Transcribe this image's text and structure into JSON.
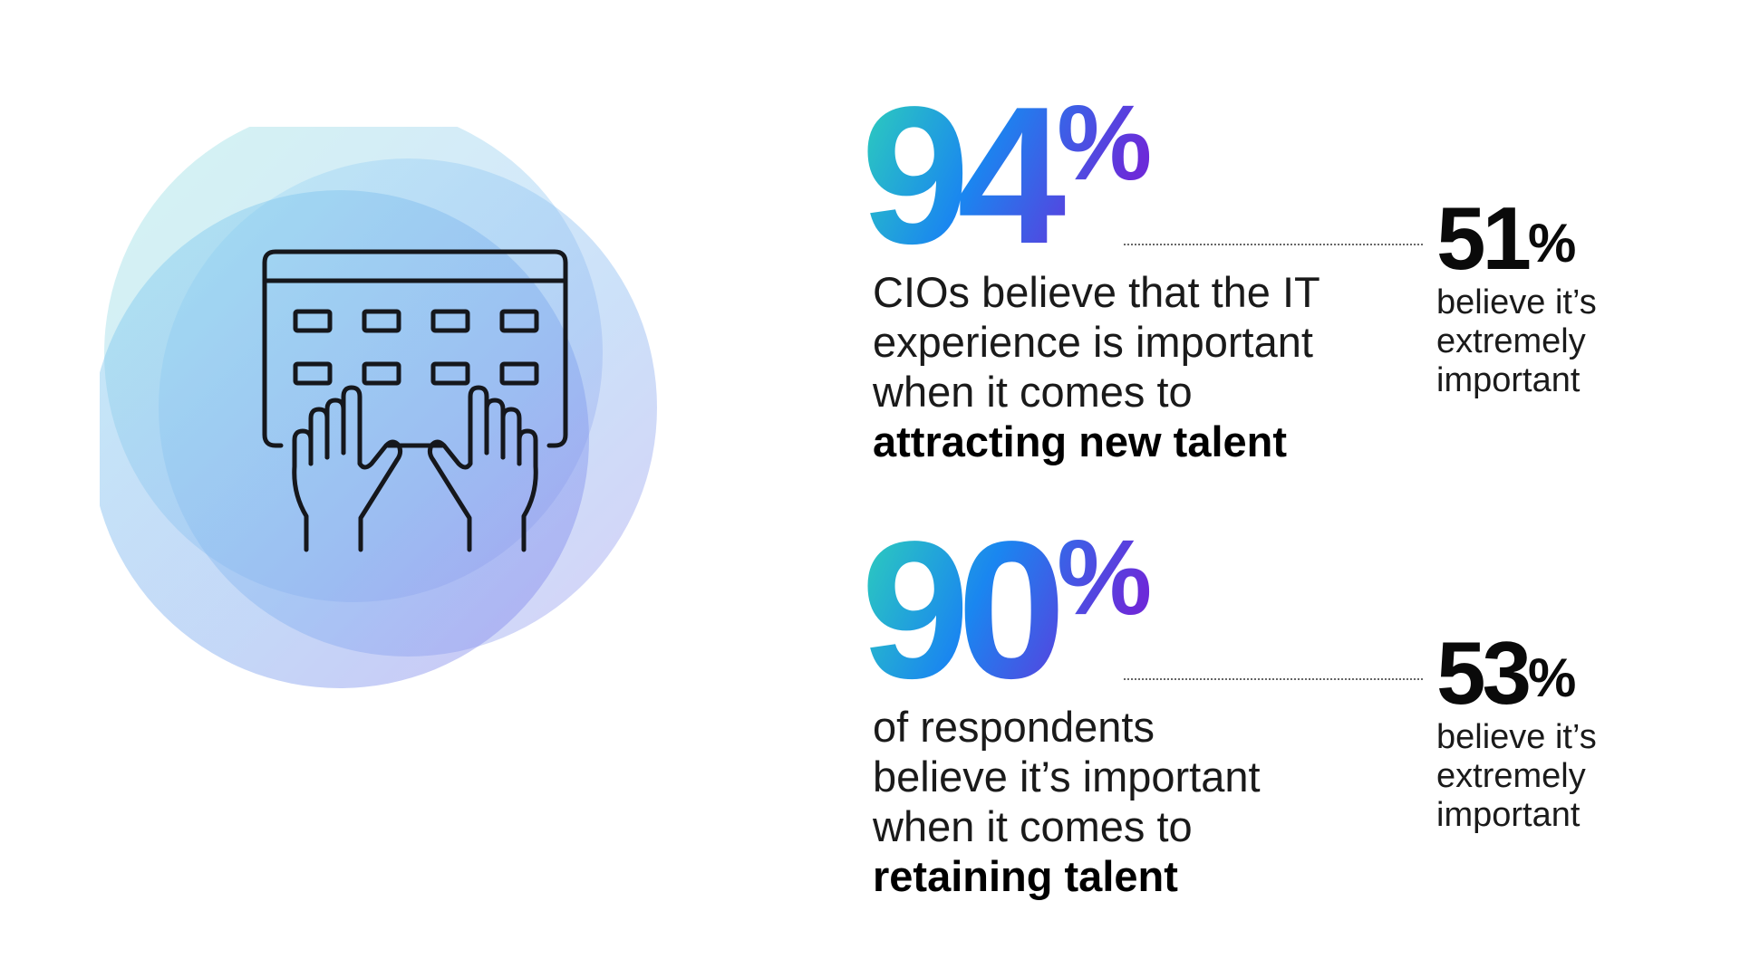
{
  "stats": [
    {
      "value": "94",
      "unit": "%",
      "description": [
        "CIOs believe that the IT",
        "experience is important",
        "when it comes to"
      ],
      "emphasis": "attracting new talent",
      "sub_value": "51",
      "sub_unit": "%",
      "sub_label": [
        "believe it’s",
        "extremely",
        "important"
      ]
    },
    {
      "value": "90",
      "unit": "%",
      "description": [
        "of respondents",
        "believe it’s important",
        "when it comes to"
      ],
      "emphasis": "retaining talent",
      "sub_value": "53",
      "sub_unit": "%",
      "sub_label": [
        "believe it’s",
        "extremely",
        "important"
      ]
    }
  ],
  "icons": {
    "illustration": "keyboard-typing-hands-icon"
  },
  "colors": {
    "gradient_teal": "#2fd6b5",
    "gradient_blue": "#1a86f0",
    "gradient_purple": "#6b2bd9",
    "text_dark": "#111111"
  }
}
